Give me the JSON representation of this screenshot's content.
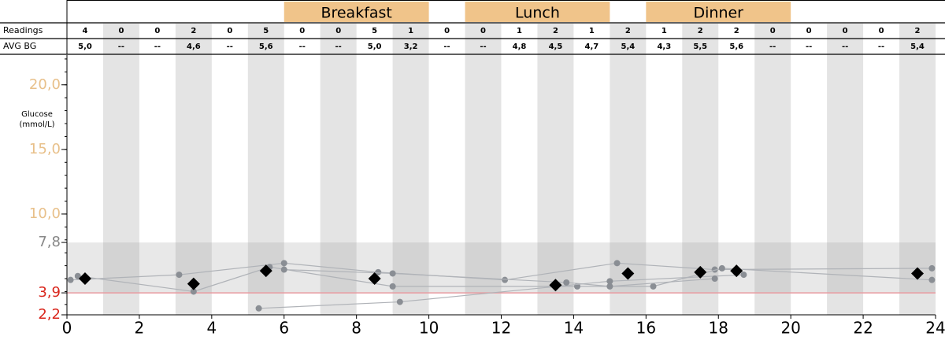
{
  "chart_data": {
    "type": "line",
    "y_label": "Glucose (mmol/L)",
    "xlim": [
      0,
      24
    ],
    "xticks": [
      0,
      2,
      4,
      6,
      8,
      10,
      12,
      14,
      16,
      18,
      20,
      22,
      24
    ],
    "ylim": [
      2.2,
      22.3
    ],
    "yticks": [
      {
        "value": 2.2,
        "label": "2,2",
        "color": "#d9261c"
      },
      {
        "value": 3.9,
        "label": "3,9",
        "color": "#d9261c"
      },
      {
        "value": 7.8,
        "label": "7,8",
        "color": "#888888"
      },
      {
        "value": 10,
        "label": "10,0",
        "color": "#e8c08a"
      },
      {
        "value": 15,
        "label": "15,0",
        "color": "#e8c08a"
      },
      {
        "value": 20,
        "label": "20,0",
        "color": "#e8c08a"
      }
    ],
    "target_range": [
      3.9,
      7.8
    ],
    "meals": [
      {
        "label": "Breakfast",
        "x": [
          6,
          10
        ]
      },
      {
        "label": "Lunch",
        "x": [
          11,
          15
        ]
      },
      {
        "label": "Dinner",
        "x": [
          16,
          20
        ]
      }
    ],
    "table": {
      "row_labels": [
        "Readings",
        "AVG BG"
      ],
      "rows": [
        [
          "4",
          "0",
          "0",
          "2",
          "0",
          "5",
          "0",
          "0",
          "5",
          "1",
          "0",
          "0",
          "1",
          "2",
          "1",
          "2",
          "1",
          "2",
          "2",
          "0",
          "0",
          "0",
          "0",
          "2"
        ],
        [
          "5,0",
          "--",
          "--",
          "4,6",
          "--",
          "5,6",
          "--",
          "--",
          "5,0",
          "3,2",
          "--",
          "--",
          "4,8",
          "4,5",
          "4,7",
          "5,4",
          "4,3",
          "5,5",
          "5,6",
          "--",
          "--",
          "--",
          "--",
          "5,4"
        ]
      ]
    },
    "series": [
      {
        "color": "#8a8e94",
        "marker": "dot",
        "x": [
          0.1,
          3.1,
          6.0,
          8.6,
          12.1,
          15.2,
          17.9,
          23.9
        ],
        "values": [
          4.9,
          5.3,
          6.2,
          5.5,
          4.9,
          6.2,
          5.7,
          5.8
        ]
      },
      {
        "color": "#8a8e94",
        "marker": "dot",
        "x": [
          0.3,
          3.5,
          5.6,
          9.0,
          14.1,
          16.2,
          18.1,
          23.9
        ],
        "values": [
          5.2,
          4.0,
          5.9,
          4.4,
          4.4,
          4.4,
          5.8,
          4.9
        ]
      },
      {
        "color": "#8a8e94",
        "marker": "dot",
        "x": [
          5.3,
          9.2,
          15.0,
          18.7
        ],
        "values": [
          2.7,
          3.2,
          4.8,
          5.3
        ]
      },
      {
        "color": "#8a8e94",
        "marker": "dot",
        "x": [
          6.0,
          9.0,
          13.8,
          15.0,
          17.9
        ],
        "values": [
          5.7,
          5.4,
          4.7,
          4.4,
          5.0
        ]
      },
      {
        "color": "#000000",
        "marker": "diamond",
        "x": [
          0.5,
          3.5,
          5.5,
          8.5,
          13.5,
          15.5,
          17.5,
          18.5,
          23.5
        ],
        "values": [
          5.0,
          4.6,
          5.6,
          5.0,
          4.5,
          5.4,
          5.5,
          5.6,
          5.4
        ]
      }
    ]
  }
}
